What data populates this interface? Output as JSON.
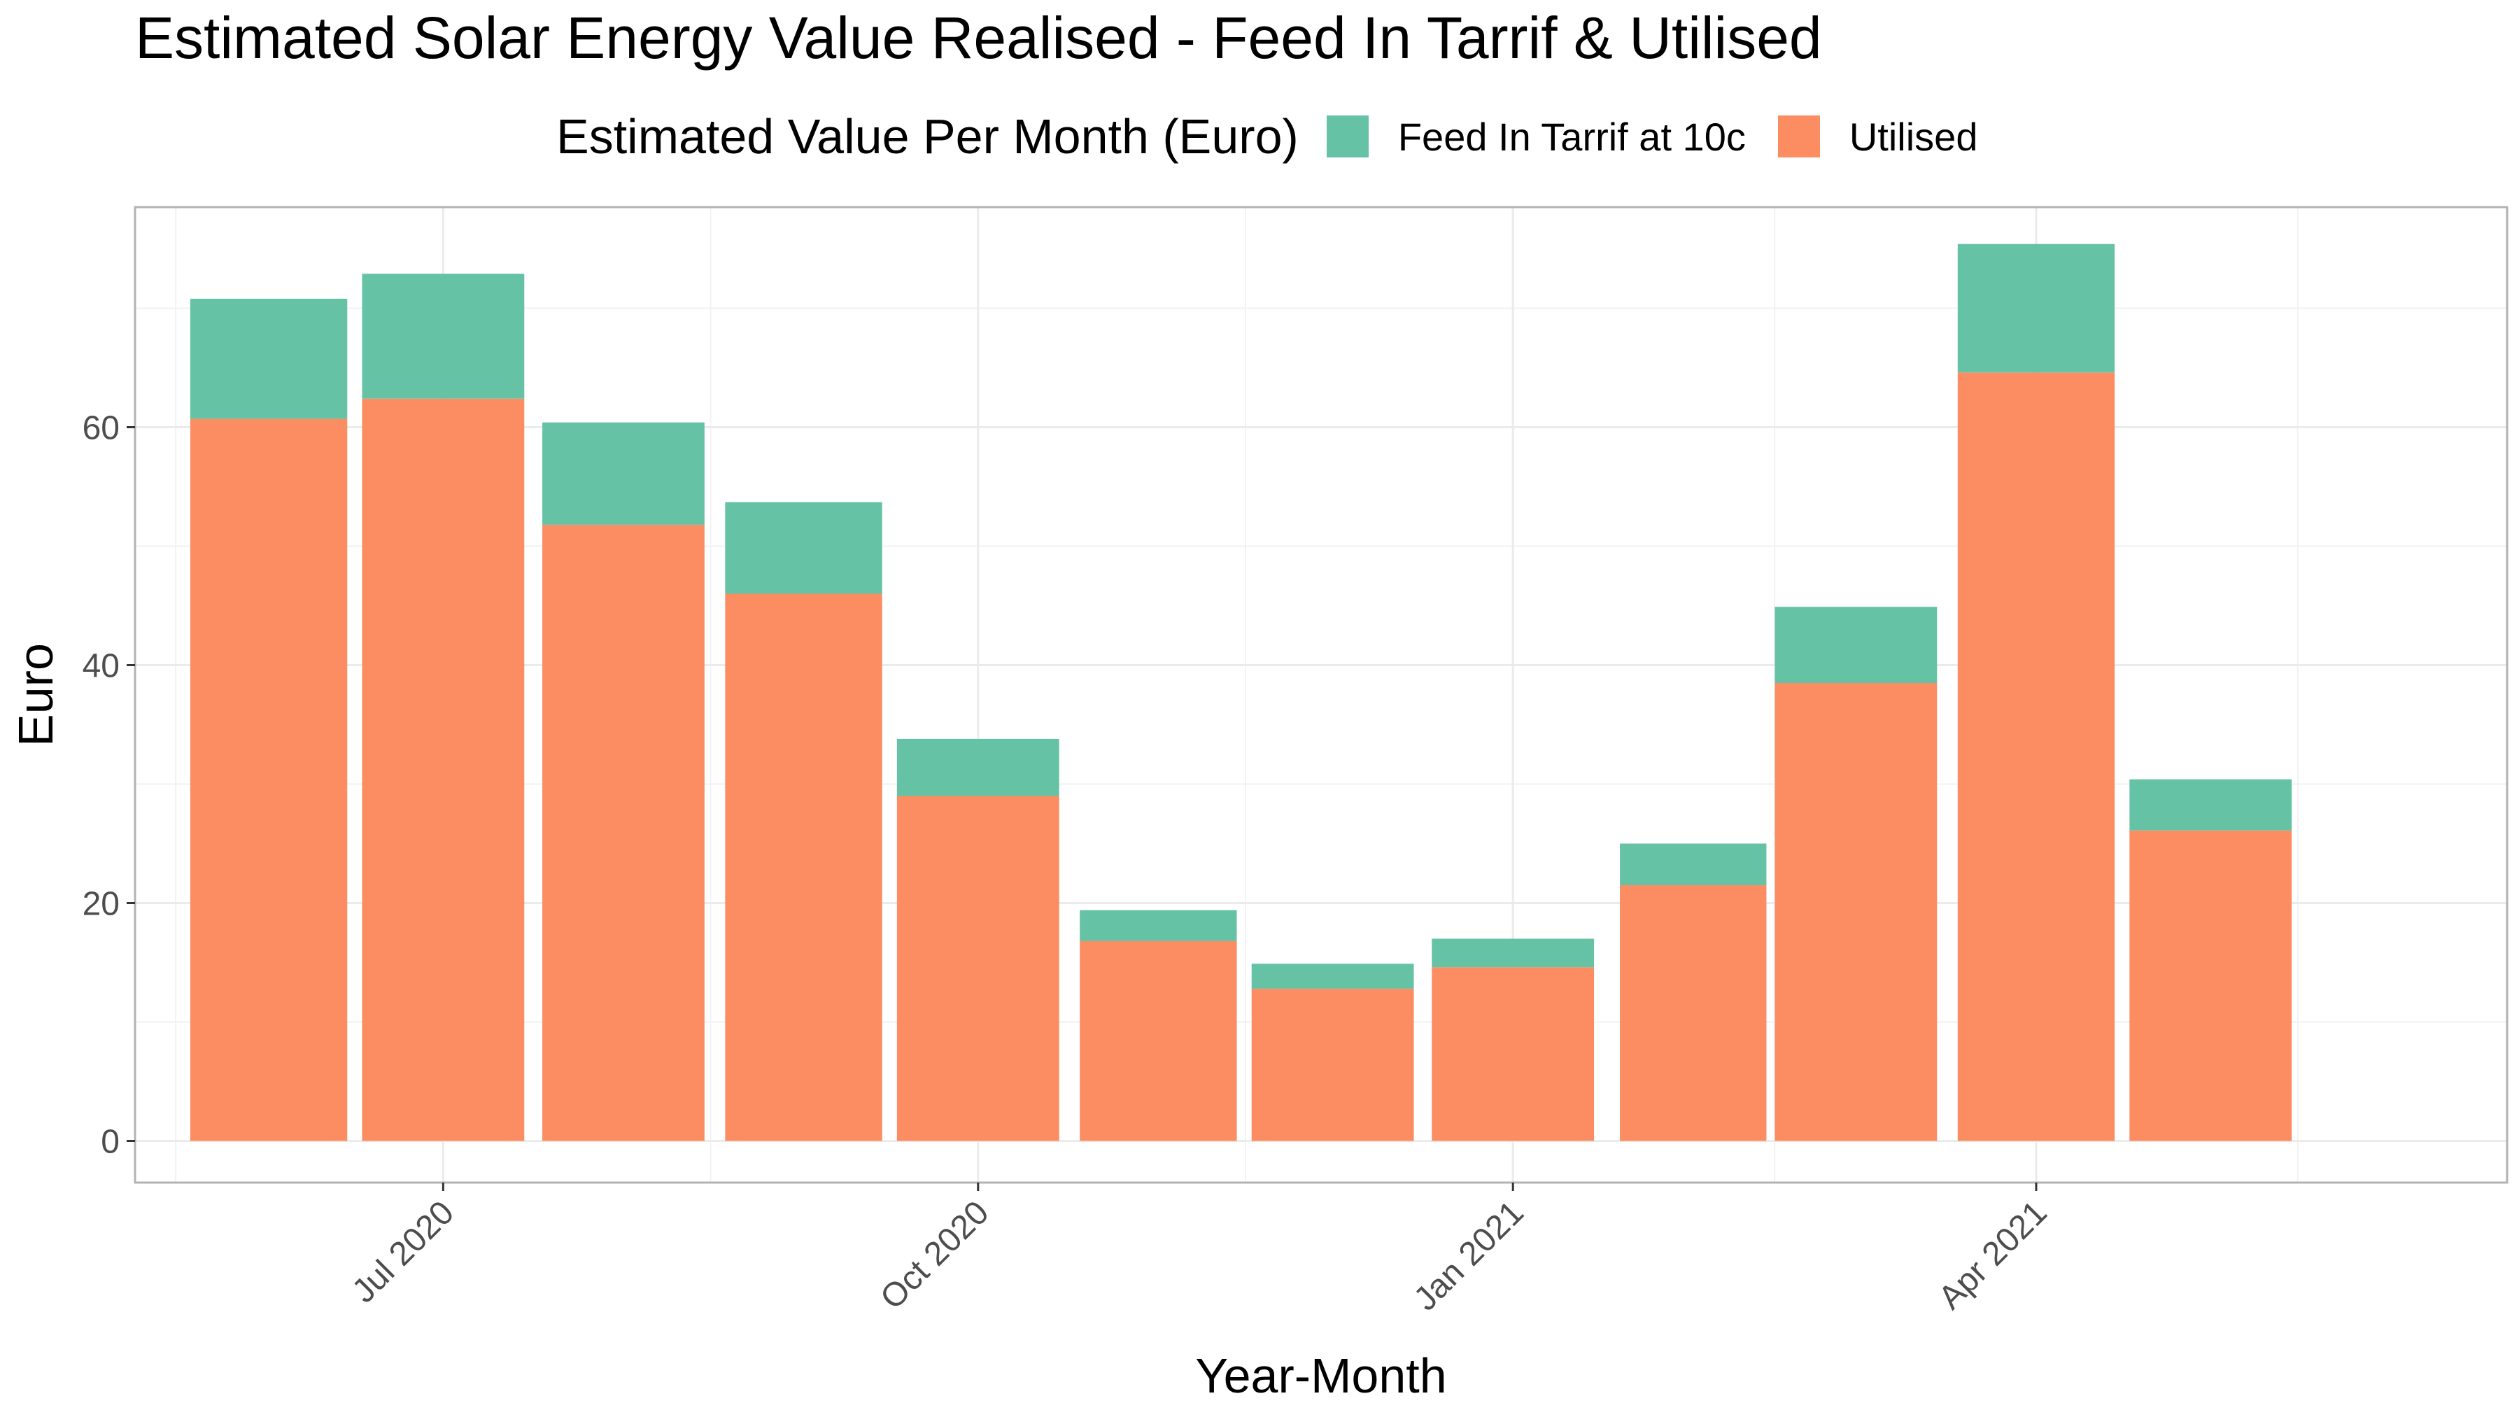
{
  "chart_data": {
    "type": "bar",
    "stacked": true,
    "title": "Estimated Solar Energy Value Realised - Feed In Tarrif & Utilised",
    "xlabel": "Year-Month",
    "ylabel": "Euro",
    "legend_title": "Estimated Value Per Month (Euro)",
    "legend_position": "top",
    "grid": true,
    "ylim": [
      -3.5,
      78.5
    ],
    "xlim": [
      "2020-05-09",
      "2021-06-21"
    ],
    "x_ticks": [
      {
        "date": "2020-07-01",
        "label": "Jul 2020"
      },
      {
        "date": "2020-10-01",
        "label": "Oct 2020"
      },
      {
        "date": "2021-01-01",
        "label": "Jan 2021"
      },
      {
        "date": "2021-04-01",
        "label": "Apr 2021"
      }
    ],
    "y_ticks": [
      0,
      20,
      40,
      60
    ],
    "categories": [
      "2020-06-01",
      "2020-07-01",
      "2020-08-01",
      "2020-09-01",
      "2020-10-01",
      "2020-11-01",
      "2020-12-01",
      "2021-01-01",
      "2021-02-01",
      "2021-03-01",
      "2021-04-01",
      "2021-05-01"
    ],
    "series": [
      {
        "name": "Utilised",
        "color": "#FC8D62",
        "values": [
          60.7,
          62.4,
          51.8,
          46.0,
          29.0,
          16.8,
          12.8,
          14.6,
          21.5,
          38.5,
          64.6,
          26.1
        ]
      },
      {
        "name": "Feed In Tarrif at 10c",
        "color": "#66C2A5",
        "values": [
          10.1,
          10.5,
          8.6,
          7.7,
          4.8,
          2.6,
          2.1,
          2.4,
          3.5,
          6.4,
          10.8,
          4.3
        ]
      }
    ],
    "legend_order": [
      "Feed In Tarrif at 10c",
      "Utilised"
    ]
  }
}
